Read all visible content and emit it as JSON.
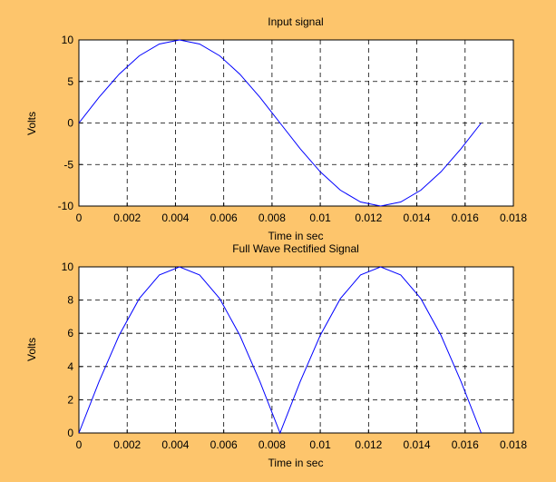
{
  "figure": {
    "background_color": "#FDC56C",
    "plot_background_color": "#FFFFFF",
    "line_color": "#0000FF",
    "grid_color": "#000000"
  },
  "chart_data": [
    {
      "type": "line",
      "title": "Input signal",
      "xlabel": "Time in sec",
      "ylabel": "Volts",
      "xlim": [
        0,
        0.018
      ],
      "ylim": [
        -10,
        10
      ],
      "xticks": [
        "0",
        "0.002",
        "0.004",
        "0.006",
        "0.008",
        "0.01",
        "0.012",
        "0.014",
        "0.016",
        "0.018"
      ],
      "yticks": [
        "10",
        "5",
        "0",
        "-5",
        "-10"
      ],
      "grid": true,
      "series": [
        {
          "x": [
            0,
            0.000833,
            0.001667,
            0.0025,
            0.003333,
            0.004167,
            0.005,
            0.005833,
            0.006667,
            0.0075,
            0.008333,
            0.009167,
            0.01,
            0.010833,
            0.011667,
            0.0125,
            0.013333,
            0.014167,
            0.015,
            0.015833,
            0.016667
          ],
          "y": [
            0,
            3.09,
            5.88,
            8.09,
            9.51,
            10,
            9.51,
            8.09,
            5.88,
            3.09,
            0,
            -3.09,
            -5.88,
            -8.09,
            -9.51,
            -10,
            -9.51,
            -8.09,
            -5.88,
            -3.09,
            0
          ]
        }
      ]
    },
    {
      "type": "line",
      "title": "Full Wave Rectified Signal",
      "xlabel": "Time in sec",
      "ylabel": "Volts",
      "xlim": [
        0,
        0.018
      ],
      "ylim": [
        0,
        10
      ],
      "xticks": [
        "0",
        "0.002",
        "0.004",
        "0.006",
        "0.008",
        "0.01",
        "0.012",
        "0.014",
        "0.016",
        "0.018"
      ],
      "yticks": [
        "10",
        "8",
        "6",
        "4",
        "2",
        "0"
      ],
      "grid": true,
      "series": [
        {
          "x": [
            0,
            0.000833,
            0.001667,
            0.0025,
            0.003333,
            0.004167,
            0.005,
            0.005833,
            0.006667,
            0.0075,
            0.008333,
            0.009167,
            0.01,
            0.010833,
            0.011667,
            0.0125,
            0.013333,
            0.014167,
            0.015,
            0.015833,
            0.016667
          ],
          "y": [
            0,
            3.09,
            5.88,
            8.09,
            9.51,
            10,
            9.51,
            8.09,
            5.88,
            3.09,
            0,
            3.09,
            5.88,
            8.09,
            9.51,
            10,
            9.51,
            8.09,
            5.88,
            3.09,
            0
          ]
        }
      ]
    }
  ]
}
